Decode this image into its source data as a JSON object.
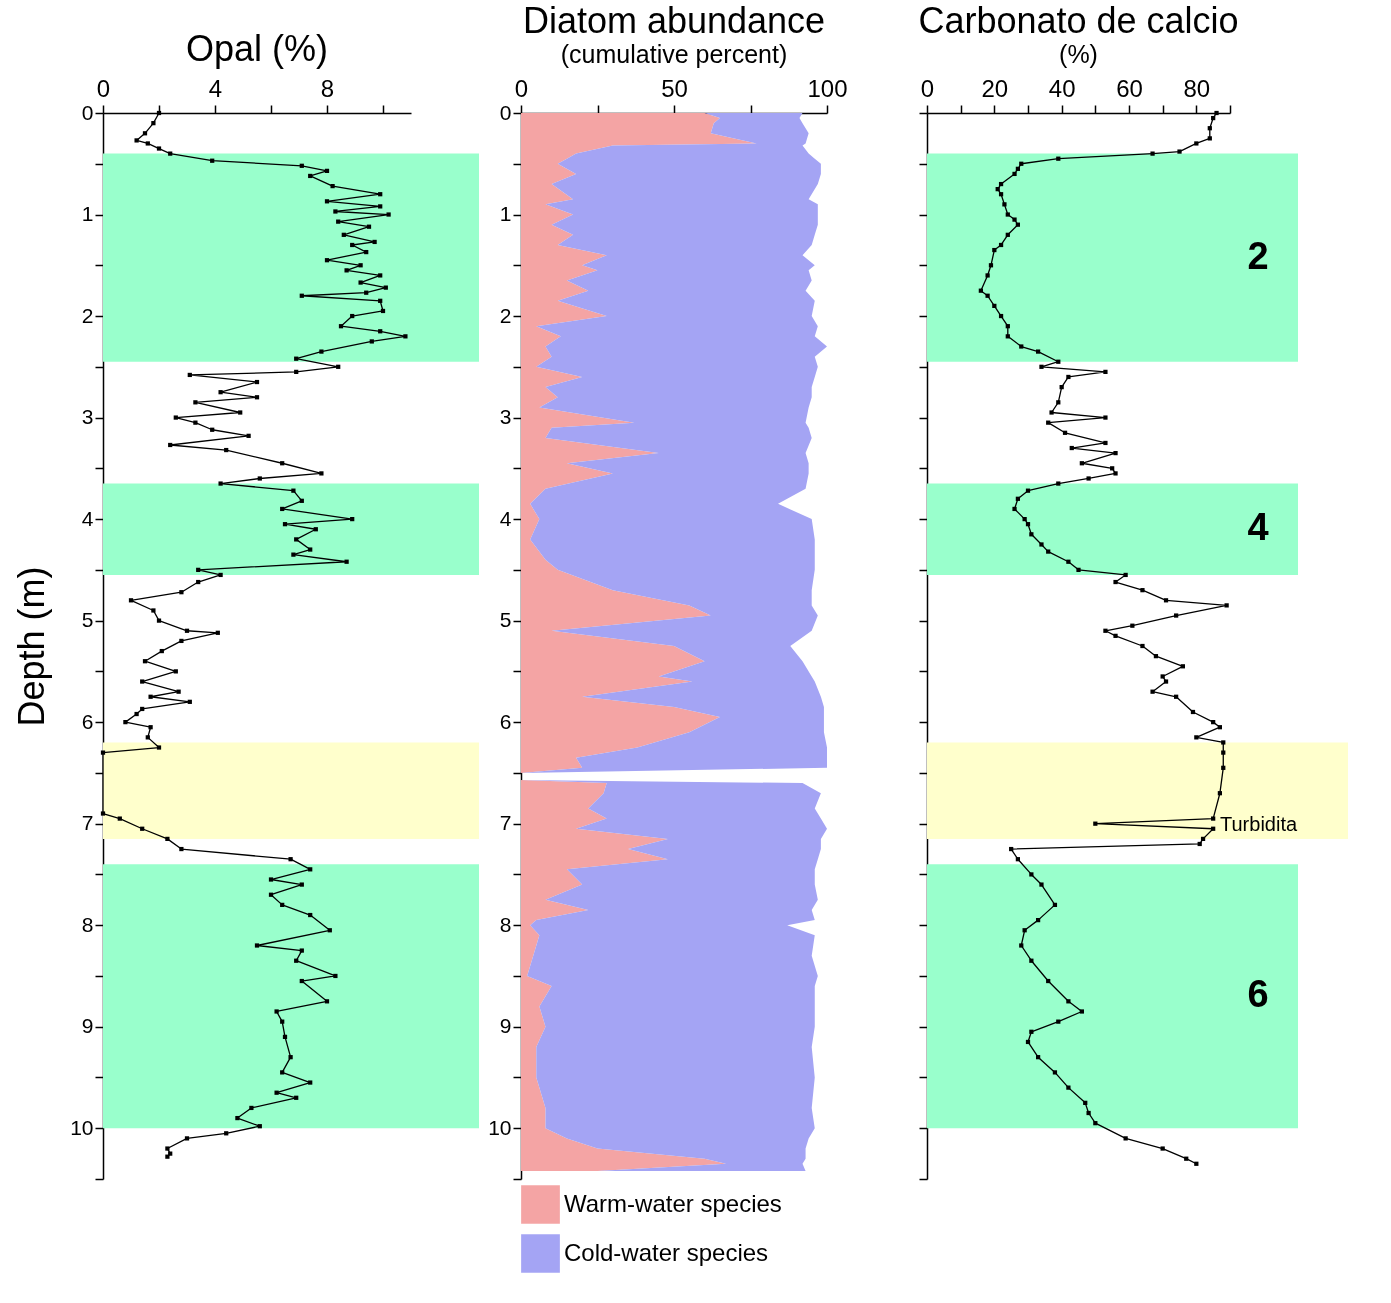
{
  "chart_data": [
    {
      "type": "line",
      "title": "Opal (%)",
      "ylabel": "Depth (m)",
      "orientation": "horizontal",
      "marker": "square",
      "xlim": [
        0,
        11
      ],
      "xticks": [
        0,
        {
          "value": 2,
          "label": null
        },
        4,
        {
          "value": 6,
          "label": null
        },
        8,
        {
          "value": 10,
          "label": null
        }
      ],
      "ylim": [
        10.5,
        0
      ],
      "yticks": [
        0,
        {
          "value": 0.5,
          "label": null
        },
        1,
        {
          "value": 1.5,
          "label": null
        },
        2,
        {
          "value": 2.5,
          "label": null
        },
        3,
        {
          "value": 3.5,
          "label": null
        },
        4,
        {
          "value": 4.5,
          "label": null
        },
        5,
        {
          "value": 5.5,
          "label": null
        },
        6,
        {
          "value": 6.5,
          "label": null
        },
        7,
        {
          "value": 7.5,
          "label": null
        },
        8,
        {
          "value": 8.5,
          "label": null
        },
        9,
        {
          "value": 9.5,
          "label": null
        },
        10,
        {
          "value": 10.5,
          "label": null
        }
      ],
      "bands": [
        {
          "axis": "y",
          "from": 0.4,
          "to": 2.45,
          "color": "#99ffcc"
        },
        {
          "axis": "y",
          "from": 3.65,
          "to": 4.55,
          "color": "#99ffcc"
        },
        {
          "axis": "y",
          "from": 6.2,
          "to": 7.15,
          "color": "#ffffcc"
        },
        {
          "axis": "y",
          "from": 7.4,
          "to": 10.0,
          "color": "#99ffcc"
        }
      ],
      "x": [
        0,
        0.1,
        0.2,
        0.27,
        0.3,
        0.35,
        0.4,
        0.47,
        0.52,
        0.57,
        0.62,
        0.72,
        0.8,
        0.87,
        0.92,
        0.97,
        1.0,
        1.07,
        1.12,
        1.2,
        1.27,
        1.3,
        1.37,
        1.45,
        1.5,
        1.55,
        1.6,
        1.67,
        1.72,
        1.77,
        1.8,
        1.85,
        1.95,
        2.0,
        2.1,
        2.15,
        2.2,
        2.25,
        2.35,
        2.42,
        2.5,
        2.55,
        2.58,
        2.65,
        2.75,
        2.8,
        2.85,
        2.95,
        3.0,
        3.05,
        3.12,
        3.18,
        3.27,
        3.32,
        3.45,
        3.55,
        3.6,
        3.65,
        3.72,
        3.82,
        3.9,
        4.0,
        4.05,
        4.1,
        4.2,
        4.3,
        4.35,
        4.42,
        4.5,
        4.55,
        4.62,
        4.72,
        4.8,
        4.9,
        5.0,
        5.1,
        5.12,
        5.2,
        5.3,
        5.4,
        5.5,
        5.6,
        5.7,
        5.75,
        5.8,
        5.87,
        5.92,
        6.0,
        6.05,
        6.15,
        6.25,
        6.3,
        6.9,
        6.95,
        7.05,
        7.15,
        7.25,
        7.35,
        7.45,
        7.55,
        7.6,
        7.7,
        7.8,
        7.9,
        8.05,
        8.2,
        8.25,
        8.35,
        8.5,
        8.55,
        8.75,
        8.85,
        8.95,
        9.1,
        9.3,
        9.45,
        9.55,
        9.65,
        9.7,
        9.8,
        9.9,
        9.98,
        10.05,
        10.1,
        10.2,
        10.25,
        10.28
      ],
      "series": [
        {
          "color": "#000000",
          "values": [
            2.0,
            1.8,
            1.5,
            1.2,
            1.6,
            2.0,
            2.4,
            3.9,
            7.1,
            8.0,
            7.4,
            8.2,
            9.9,
            8.0,
            9.9,
            8.3,
            10.2,
            8.4,
            9.5,
            8.6,
            9.7,
            8.9,
            9.4,
            8.0,
            9.2,
            8.7,
            9.9,
            9.2,
            10.1,
            9.4,
            7.1,
            9.9,
            10.0,
            8.9,
            8.5,
            9.9,
            10.8,
            9.6,
            7.8,
            6.9,
            8.4,
            6.9,
            3.1,
            5.5,
            4.2,
            5.5,
            3.3,
            4.9,
            2.6,
            3.3,
            3.9,
            5.2,
            2.4,
            4.4,
            6.4,
            7.8,
            5.6,
            4.2,
            6.8,
            7.1,
            6.4,
            8.9,
            6.5,
            7.6,
            6.9,
            7.4,
            6.8,
            8.7,
            3.4,
            4.2,
            3.4,
            2.8,
            1.0,
            1.8,
            2.0,
            3.0,
            4.1,
            2.8,
            2.1,
            1.5,
            2.6,
            1.4,
            2.7,
            1.7,
            3.1,
            1.4,
            1.2,
            0.8,
            1.7,
            1.6,
            2.0,
            0,
            0,
            0.6,
            1.4,
            2.3,
            2.8,
            6.7,
            7.4,
            6.0,
            7.1,
            6.0,
            6.4,
            7.4,
            8.1,
            5.5,
            7.1,
            6.9,
            8.3,
            7.1,
            8.0,
            6.2,
            6.4,
            6.5,
            6.7,
            6.4,
            7.4,
            6.2,
            6.9,
            5.3,
            4.8,
            5.6,
            4.4,
            3.0,
            2.3,
            2.4,
            2.3
          ]
        }
      ]
    },
    {
      "type": "area",
      "title": "Diatom abundance",
      "subtitle": "(cumulative percent)",
      "orientation": "horizontal",
      "stacked": true,
      "legend": "bottom",
      "xlim": [
        0,
        100
      ],
      "xticks": [
        0,
        {
          "value": 25,
          "label": null
        },
        50,
        {
          "value": 75,
          "label": null
        },
        100
      ],
      "ylim": [
        10.5,
        0
      ],
      "yticks": [
        0,
        {
          "value": 0.5,
          "label": null
        },
        1,
        {
          "value": 1.5,
          "label": null
        },
        2,
        {
          "value": 2.5,
          "label": null
        },
        3,
        {
          "value": 3.5,
          "label": null
        },
        4,
        {
          "value": 4.5,
          "label": null
        },
        5,
        {
          "value": 5.5,
          "label": null
        },
        6,
        {
          "value": 6.5,
          "label": null
        },
        7,
        {
          "value": 7.5,
          "label": null
        },
        8,
        {
          "value": 8.5,
          "label": null
        },
        9,
        {
          "value": 9.5,
          "label": null
        },
        10,
        {
          "value": 10.5,
          "label": null
        }
      ],
      "x": [
        0,
        0.05,
        0.1,
        0.2,
        0.3,
        0.32,
        0.4,
        0.45,
        0.5,
        0.6,
        0.7,
        0.85,
        0.9,
        1.0,
        1.1,
        1.2,
        1.3,
        1.4,
        1.5,
        1.55,
        1.65,
        1.75,
        1.85,
        2.0,
        2.1,
        2.2,
        2.3,
        2.4,
        2.5,
        2.6,
        2.7,
        2.8,
        2.9,
        3.05,
        3.1,
        3.2,
        3.35,
        3.45,
        3.55,
        3.7,
        3.85,
        4.0,
        4.2,
        4.4,
        4.5,
        4.7,
        4.85,
        4.95,
        5.1,
        5.25,
        5.4,
        5.55,
        5.6,
        5.75,
        5.85,
        5.95,
        6.1,
        6.25,
        6.35,
        6.45,
        6.5,
        6.57,
        6.6,
        6.7,
        6.85,
        6.95,
        7.05,
        7.15,
        7.25,
        7.35,
        7.45,
        7.6,
        7.75,
        7.85,
        7.95,
        8.0,
        8.1,
        8.3,
        8.5,
        8.6,
        8.8,
        9.0,
        9.2,
        9.5,
        9.8,
        10.0,
        10.1,
        10.2,
        10.3,
        10.35,
        10.42
      ],
      "series": [
        {
          "name": "Warm-water species",
          "color": "#f4a4a4",
          "values": [
            60,
            65,
            63,
            62,
            77,
            30,
            18,
            15,
            12,
            18,
            10,
            17,
            8,
            17,
            10,
            17,
            12,
            28,
            20,
            25,
            15,
            22,
            12,
            28,
            5,
            13,
            8,
            10,
            5,
            20,
            8,
            12,
            6,
            37,
            10,
            8,
            45,
            15,
            30,
            8,
            3,
            6,
            3,
            8,
            12,
            30,
            55,
            62,
            10,
            50,
            60,
            45,
            56,
            20,
            50,
            65,
            55,
            38,
            18,
            20,
            0,
            0,
            28,
            27,
            22,
            28,
            18,
            48,
            35,
            48,
            15,
            20,
            8,
            22,
            5,
            3,
            6,
            4,
            2,
            10,
            6,
            8,
            5,
            5,
            8,
            8,
            15,
            25,
            60,
            67,
            25
          ]
        },
        {
          "name": "Cold-water species",
          "color": "#a4a4f4",
          "values": [
            32,
            26,
            29,
            32,
            16,
            62,
            76,
            81,
            86,
            80,
            87,
            77,
            89,
            80,
            87,
            79,
            83,
            64,
            76,
            69,
            80,
            71,
            84,
            67,
            92,
            83,
            92,
            86,
            92,
            76,
            87,
            83,
            88,
            56,
            84,
            87,
            48,
            79,
            64,
            85,
            81,
            89,
            93,
            88,
            84,
            65,
            40,
            35,
            85,
            38,
            32,
            50,
            40,
            78,
            49,
            34,
            44,
            62,
            82,
            80,
            0,
            0,
            64,
            71,
            74,
            70,
            82,
            50,
            63,
            49,
            81,
            76,
            89,
            73,
            91,
            84,
            90,
            91,
            95,
            86,
            90,
            88,
            90,
            91,
            87,
            88,
            79,
            68,
            33,
            25,
            68
          ]
        }
      ]
    },
    {
      "type": "line",
      "title": "Carbonato de calcio",
      "subtitle": "(%)",
      "orientation": "horizontal",
      "marker": "square",
      "tick_labels": "x",
      "xlim": [
        0,
        90
      ],
      "xticks": [
        0,
        {
          "value": 10,
          "label": null
        },
        20,
        {
          "value": 30,
          "label": null
        },
        40,
        {
          "value": 50,
          "label": null
        },
        60,
        {
          "value": 70,
          "label": null
        },
        80,
        {
          "value": 90,
          "label": null
        }
      ],
      "ylim": [
        10.5,
        0
      ],
      "yticks": [
        0,
        0.5,
        1,
        1.5,
        2,
        2.5,
        3,
        3.5,
        4,
        4.5,
        5,
        5.5,
        6,
        6.5,
        7,
        7.5,
        8,
        8.5,
        9,
        9.5,
        10,
        10.5
      ],
      "bands": [
        {
          "axis": "y",
          "from": 0.4,
          "to": 2.45,
          "color": "#99ffcc",
          "label": "2"
        },
        {
          "axis": "y",
          "from": 3.65,
          "to": 4.55,
          "color": "#99ffcc",
          "label": "4"
        },
        {
          "axis": "y",
          "from": 6.2,
          "to": 7.15,
          "color": "#ffffcc",
          "label": "Turbidita"
        },
        {
          "axis": "y",
          "from": 7.4,
          "to": 10.0,
          "color": "#99ffcc",
          "label": "6"
        }
      ],
      "x": [
        0,
        0.05,
        0.15,
        0.25,
        0.3,
        0.38,
        0.4,
        0.45,
        0.5,
        0.55,
        0.6,
        0.7,
        0.75,
        0.8,
        0.9,
        1.0,
        1.05,
        1.1,
        1.2,
        1.3,
        1.35,
        1.5,
        1.6,
        1.75,
        1.8,
        1.9,
        2.0,
        2.1,
        2.2,
        2.3,
        2.35,
        2.45,
        2.5,
        2.55,
        2.6,
        2.7,
        2.85,
        2.95,
        3.0,
        3.05,
        3.15,
        3.25,
        3.3,
        3.35,
        3.45,
        3.5,
        3.55,
        3.6,
        3.65,
        3.72,
        3.8,
        3.9,
        4.0,
        4.05,
        4.15,
        4.25,
        4.32,
        4.42,
        4.5,
        4.55,
        4.62,
        4.7,
        4.8,
        4.85,
        4.95,
        5.05,
        5.1,
        5.15,
        5.25,
        5.35,
        5.45,
        5.55,
        5.6,
        5.7,
        5.75,
        5.9,
        6.0,
        6.05,
        6.15,
        6.2,
        6.3,
        6.45,
        6.7,
        6.95,
        7.0,
        7.05,
        7.15,
        7.2,
        7.25,
        7.35,
        7.5,
        7.6,
        7.8,
        7.95,
        8.05,
        8.2,
        8.35,
        8.55,
        8.75,
        8.85,
        8.95,
        9.05,
        9.15,
        9.3,
        9.45,
        9.6,
        9.75,
        9.85,
        9.95,
        10.1,
        10.2,
        10.3,
        10.35
      ],
      "series": [
        {
          "color": "#000000",
          "values": [
            86,
            85,
            84,
            84,
            80,
            75,
            67,
            39,
            28,
            27,
            26,
            22,
            21,
            22,
            23,
            24,
            26,
            27,
            24,
            22,
            20,
            19,
            18,
            16,
            18,
            20,
            22,
            24,
            24,
            28,
            33,
            39,
            34,
            53,
            42,
            40,
            39,
            37,
            53,
            36,
            41,
            53,
            43,
            56,
            46,
            55,
            56,
            48,
            39,
            30,
            27,
            26,
            29,
            30,
            31,
            34,
            36,
            42,
            45,
            59,
            56,
            64,
            71,
            89,
            74,
            61,
            53,
            56,
            64,
            68,
            76,
            70,
            71,
            67,
            74,
            79,
            85,
            87,
            80,
            88,
            88,
            88,
            87,
            85,
            50,
            85,
            82,
            81,
            25,
            27,
            31,
            34,
            38,
            33,
            29,
            28,
            31,
            36,
            42,
            46,
            39,
            31,
            30,
            33,
            38,
            42,
            47,
            48,
            50,
            59,
            70,
            77,
            80
          ]
        }
      ]
    }
  ]
}
